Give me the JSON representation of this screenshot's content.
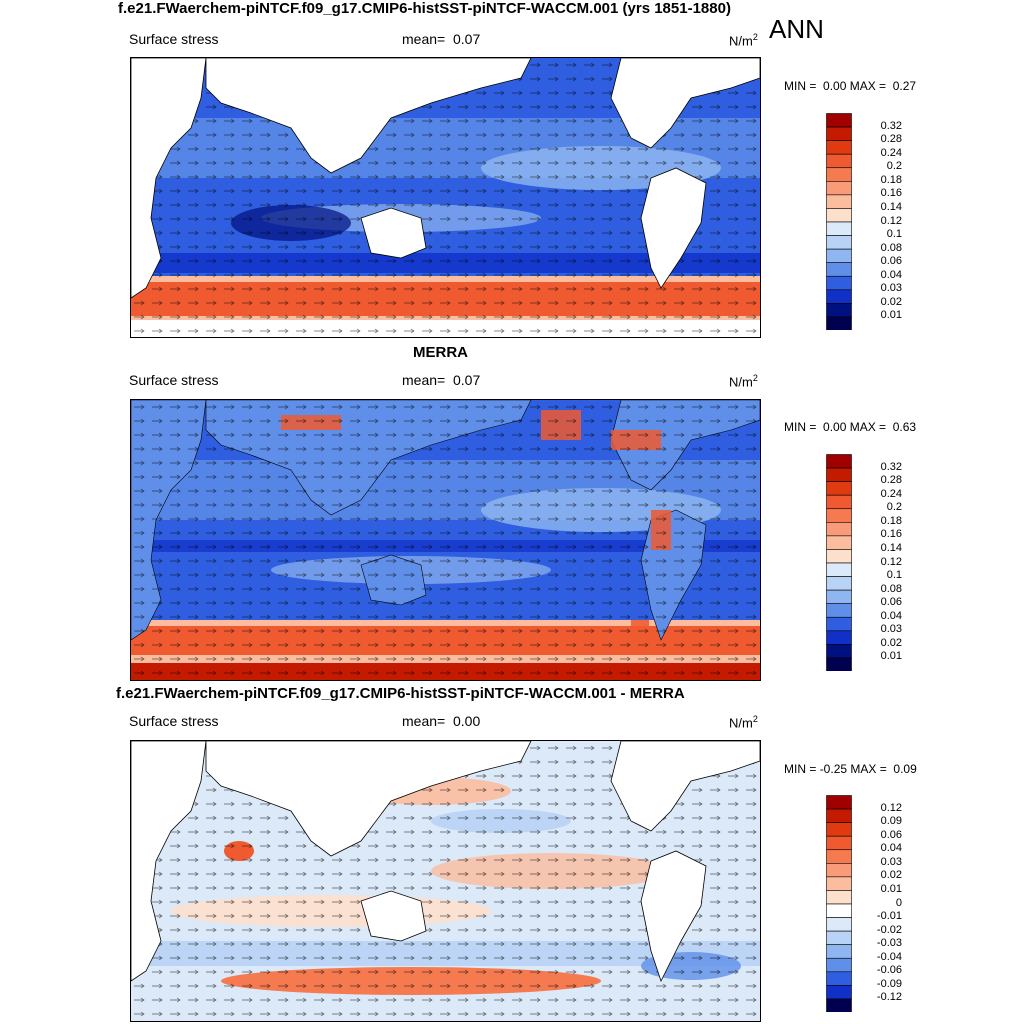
{
  "season": "ANN",
  "panels": [
    {
      "title": "f.e21.FWaerchem-piNTCF.f09_g17.CMIP6-histSST-piNTCF-WACCM.001 (yrs 1851-1880)",
      "variable": "Surface stress",
      "mean_label": "mean=",
      "mean_value": "0.07",
      "units": "N/m",
      "units_exp": "2",
      "min_label": "MIN =",
      "min_value": "0.00",
      "max_label": "MAX =",
      "max_value": "0.27",
      "colorbar_labels": [
        "0.32",
        "0.28",
        "0.24",
        "0.2",
        "0.18",
        "0.16",
        "0.14",
        "0.12",
        "0.1",
        "0.08",
        "0.06",
        "0.04",
        "0.03",
        "0.02",
        "0.01"
      ],
      "colorbar_colors": [
        "#a00000",
        "#c41a00",
        "#e03a10",
        "#f05a30",
        "#f57a50",
        "#f99a78",
        "#fcbc9e",
        "#fde0cc",
        "#dbe9f8",
        "#b8d3f5",
        "#8fb6f0",
        "#5f8fe8",
        "#2f5fe0",
        "#1030c8",
        "#001080",
        "#000050"
      ]
    },
    {
      "title": "MERRA",
      "variable": "Surface stress",
      "mean_label": "mean=",
      "mean_value": "0.07",
      "units": "N/m",
      "units_exp": "2",
      "min_label": "MIN =",
      "min_value": "0.00",
      "max_label": "MAX =",
      "max_value": "0.63",
      "colorbar_labels": [
        "0.32",
        "0.28",
        "0.24",
        "0.2",
        "0.18",
        "0.16",
        "0.14",
        "0.12",
        "0.1",
        "0.08",
        "0.06",
        "0.04",
        "0.03",
        "0.02",
        "0.01"
      ],
      "colorbar_colors": [
        "#a00000",
        "#c41a00",
        "#e03a10",
        "#f05a30",
        "#f57a50",
        "#f99a78",
        "#fcbc9e",
        "#fde0cc",
        "#dbe9f8",
        "#b8d3f5",
        "#8fb6f0",
        "#5f8fe8",
        "#2f5fe0",
        "#1030c8",
        "#001080",
        "#000050"
      ]
    },
    {
      "title": "f.e21.FWaerchem-piNTCF.f09_g17.CMIP6-histSST-piNTCF-WACCM.001 - MERRA",
      "variable": "Surface stress",
      "mean_label": "mean=",
      "mean_value": "0.00",
      "units": "N/m",
      "units_exp": "2",
      "min_label": "MIN =",
      "min_value": "-0.25",
      "max_label": "MAX =",
      "max_value": "0.09",
      "colorbar_labels": [
        "0.12",
        "0.09",
        "0.06",
        "0.04",
        "0.03",
        "0.02",
        "0.01",
        "0",
        "-0.01",
        "-0.02",
        "-0.03",
        "-0.04",
        "-0.06",
        "-0.09",
        "-0.12"
      ],
      "colorbar_colors": [
        "#a00000",
        "#c41a00",
        "#e03a10",
        "#f05a30",
        "#f57a50",
        "#f99a78",
        "#fcbc9e",
        "#fde0cc",
        "#ffffff",
        "#dbe9f8",
        "#b8d3f5",
        "#8fb6f0",
        "#5f8fe8",
        "#2f5fe0",
        "#1030c8",
        "#000050"
      ]
    }
  ]
}
